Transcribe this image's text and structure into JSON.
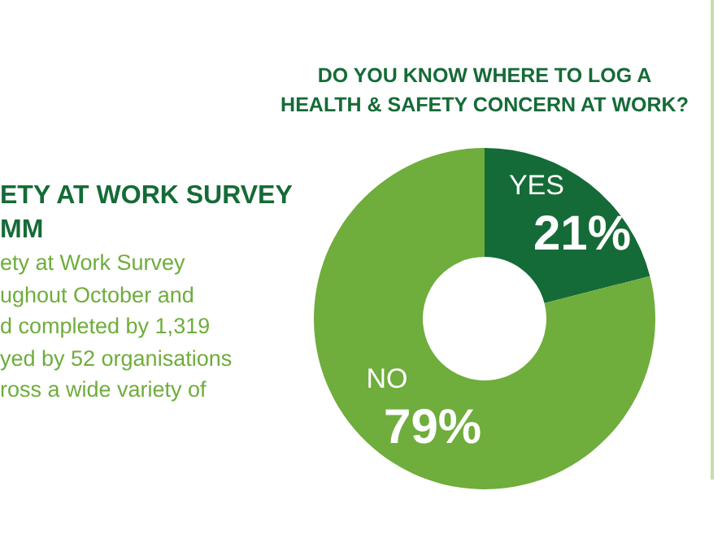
{
  "chart_data": {
    "type": "donut",
    "title": "DO YOU KNOW WHERE TO LOG A HEALTH & SAFETY CONCERN AT WORK?",
    "categories": [
      "YES",
      "NO"
    ],
    "values": [
      21,
      79
    ],
    "colors": [
      "#156b37",
      "#6fad3c"
    ],
    "value_labels": [
      "21%",
      "79%"
    ],
    "annotations": [
      "ETY AT WORK SURVEY",
      "MM",
      "ety at Work Survey",
      "ughout October and",
      "d completed by 1,319",
      "yed by 52 organisations",
      "ross a wide variety of"
    ]
  }
}
